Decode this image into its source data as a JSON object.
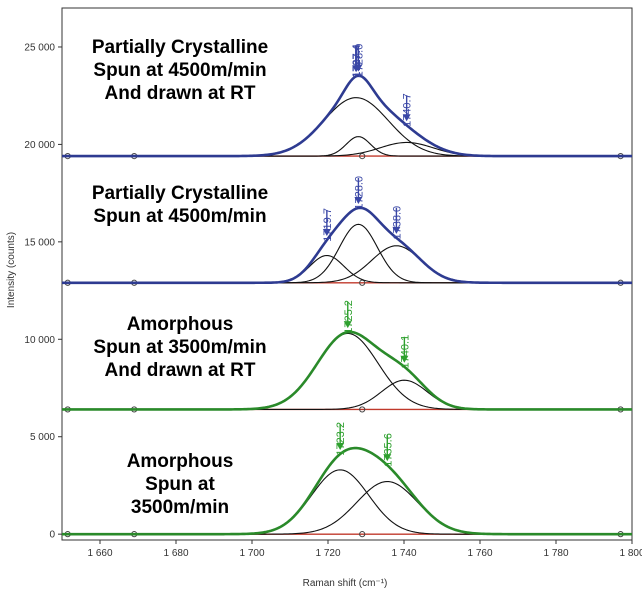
{
  "chart_data": {
    "type": "line",
    "xlabel": "Raman shift (cm⁻¹)",
    "ylabel": "Intensity (counts)",
    "xlim": [
      1650,
      1800
    ],
    "ylim": [
      -300,
      27000
    ],
    "x_ticks": [
      1660,
      1680,
      1700,
      1720,
      1740,
      1760,
      1780,
      1800
    ],
    "x_tick_labels": [
      "1 660",
      "1 680",
      "1 700",
      "1 720",
      "1 740",
      "1 760",
      "1 780",
      "1 800"
    ],
    "y_ticks": [
      0,
      5000,
      10000,
      15000,
      20000,
      25000
    ],
    "y_tick_labels": [
      "0",
      "5 000",
      "10 000",
      "15 000",
      "20 000",
      "25 000"
    ],
    "grid": false,
    "panels": [
      {
        "title": [
          "Partially Crystalline",
          "Spun at 4500m/min",
          "And drawn at RT"
        ],
        "baseline": 19400,
        "envelope_color": "#2e3b91",
        "arrow_color": "#3a47a6",
        "components": [
          {
            "center": 1727.4,
            "height": 3000,
            "width": 8.5
          },
          {
            "center": 1728.0,
            "height": 1000,
            "width": 3.2
          },
          {
            "center": 1740.7,
            "height": 700,
            "width": 7.0
          }
        ],
        "peak_labels": [
          {
            "text": "1727.4",
            "x": 1727.4,
            "bold": true
          },
          {
            "text": "1728.0",
            "x": 1728.0
          },
          {
            "text": "1740.7",
            "x": 1740.7
          }
        ]
      },
      {
        "title": [
          "Partially Crystalline",
          "Spun at 4500m/min"
        ],
        "baseline": 12900,
        "envelope_color": "#2e3b91",
        "arrow_color": "#3a47a6",
        "components": [
          {
            "center": 1719.7,
            "height": 1400,
            "width": 4.5
          },
          {
            "center": 1728.0,
            "height": 3000,
            "width": 5.0
          },
          {
            "center": 1738.0,
            "height": 1900,
            "width": 6.5
          }
        ],
        "peak_labels": [
          {
            "text": "1719.7",
            "x": 1719.7
          },
          {
            "text": "1728.0",
            "x": 1728.0
          },
          {
            "text": "1738.0",
            "x": 1738.0
          }
        ]
      },
      {
        "title": [
          "Amorphous",
          "Spun at 3500m/min",
          "And drawn at RT"
        ],
        "baseline": 6400,
        "envelope_color": "#2a8a2a",
        "arrow_color": "#2ea02e",
        "components": [
          {
            "center": 1725.2,
            "height": 3900,
            "width": 8.0
          },
          {
            "center": 1740.1,
            "height": 1500,
            "width": 6.0
          }
        ],
        "peak_labels": [
          {
            "text": "1725.2",
            "x": 1725.2
          },
          {
            "text": "1740.1",
            "x": 1740.1
          }
        ]
      },
      {
        "title": [
          "Amorphous",
          "Spun at",
          "3500m/min"
        ],
        "baseline": 0,
        "envelope_color": "#2a8a2a",
        "arrow_color": "#2ea02e",
        "components": [
          {
            "center": 1723.2,
            "height": 3300,
            "width": 7.5
          },
          {
            "center": 1735.6,
            "height": 2700,
            "width": 8.0
          }
        ],
        "peak_labels": [
          {
            "text": "1723.2",
            "x": 1723.2
          },
          {
            "text": "1735.6",
            "x": 1735.6
          }
        ]
      }
    ]
  }
}
